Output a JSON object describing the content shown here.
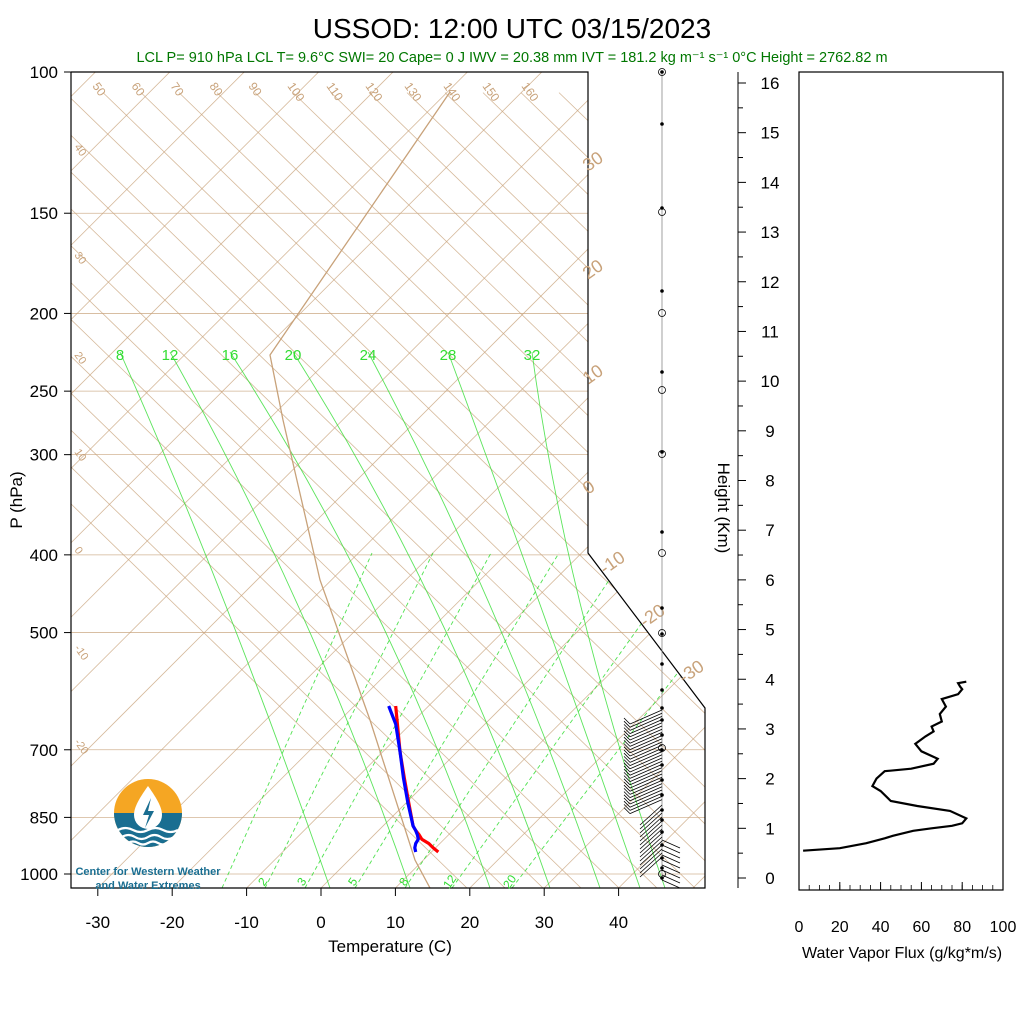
{
  "title": "USSOD: 12:00 UTC 03/15/2023",
  "stats_line": "LCL P= 910 hPa  LCL T= 9.6°C  SWI= 20  Cape= 0 J  IWV = 20.38 mm  IVT = 181.2 kg m⁻¹ s⁻¹  0°C Height = 2762.82 m",
  "logo": {
    "line1": "Center for Western Weather",
    "line2": "and Water Extremes"
  },
  "colors": {
    "title_text": "#000000",
    "stats_text": "#007700",
    "temperature_line": "#ff0000",
    "dewpoint_line": "#0000ff",
    "adiabat_lines": "#c8a27a",
    "mixing_ratio_lines": "#33dd33",
    "wind_barbs": "#000000",
    "logo_orange": "#f5a623",
    "logo_blue": "#1a6e91"
  },
  "skewt": {
    "ylabel": "P (hPa)",
    "xlabel": "Temperature (C)",
    "pressure_ticks": [
      100,
      150,
      200,
      250,
      300,
      400,
      500,
      700,
      850,
      1000
    ],
    "temperature_ticks": [
      -30,
      -20,
      -10,
      0,
      10,
      20,
      30,
      40
    ],
    "adiabat_top_labels": [
      "50",
      "60",
      "70",
      "80",
      "90",
      "100",
      "110",
      "120",
      "130",
      "140",
      "150",
      "160"
    ],
    "adiabat_left_labels": [
      "40",
      "30",
      "20",
      "10",
      "0",
      "-10",
      "-20"
    ],
    "adiabat_right_labels": [
      "30",
      "20",
      "10",
      "0",
      "-10",
      "-20",
      "-30"
    ],
    "mixing_ratio_top_labels": [
      "8",
      "12",
      "16",
      "20",
      "24",
      "28",
      "32"
    ],
    "mixing_ratio_bottom_labels": [
      "2",
      "3",
      "5",
      "8",
      "12",
      "20"
    ]
  },
  "height_axis": {
    "label": "Height (Km)",
    "ticks": [
      "0",
      "1",
      "2",
      "3",
      "4",
      "5",
      "6",
      "7",
      "8",
      "9",
      "10",
      "11",
      "12",
      "13",
      "14",
      "15",
      "16"
    ]
  },
  "flux_panel": {
    "xlabel": "Water Vapor Flux (g/kg*m/s)",
    "ticks": [
      "0",
      "20",
      "40",
      "60",
      "80",
      "100"
    ]
  },
  "chart_data": [
    {
      "type": "line",
      "title": "USSOD: 12:00 UTC 03/15/2023",
      "xlabel": "Temperature (C)",
      "ylabel": "P (hPa)",
      "y_scale": "log",
      "ylim": [
        1000,
        100
      ],
      "xlim": [
        -34,
        52
      ],
      "series": [
        {
          "name": "Temperature",
          "pressure_hPa": [
            910,
            900,
            890,
            880,
            870,
            860,
            850,
            800,
            750,
            700,
            650,
            620
          ],
          "temperature_C": [
            15.9,
            15.3,
            14.8,
            14.0,
            13.7,
            13.3,
            13.0,
            12.5,
            12.0,
            11.5,
            11.2,
            11.0
          ]
        },
        {
          "name": "Dewpoint",
          "pressure_hPa": [
            910,
            900,
            890,
            880,
            870,
            860,
            850,
            800,
            750,
            700,
            650,
            620
          ],
          "dewpoint_C": [
            13.3,
            13.2,
            13.3,
            13.6,
            13.5,
            13.3,
            13.0,
            12.4,
            11.9,
            11.5,
            11.0,
            10.2
          ]
        }
      ]
    },
    {
      "type": "line",
      "xlabel": "Water Vapor Flux (g/kg*m/s)",
      "ylabel": "Height (Km)",
      "xlim": [
        0,
        100
      ],
      "ylim": [
        0,
        16
      ],
      "x": [
        2,
        20,
        33,
        42,
        46,
        56,
        65,
        75,
        80,
        82,
        74,
        58,
        45,
        40,
        36,
        38,
        42,
        55,
        66,
        68,
        60,
        57,
        62,
        66,
        65,
        70,
        69,
        72,
        70,
        78,
        80,
        79,
        78,
        82
      ],
      "y": [
        0.55,
        0.6,
        0.7,
        0.8,
        0.85,
        0.95,
        1.0,
        1.05,
        1.1,
        1.2,
        1.35,
        1.45,
        1.55,
        1.75,
        1.85,
        2.0,
        2.15,
        2.2,
        2.3,
        2.4,
        2.55,
        2.7,
        2.85,
        2.95,
        3.05,
        3.15,
        3.3,
        3.45,
        3.6,
        3.7,
        3.8,
        3.85,
        3.92,
        3.95
      ]
    }
  ]
}
